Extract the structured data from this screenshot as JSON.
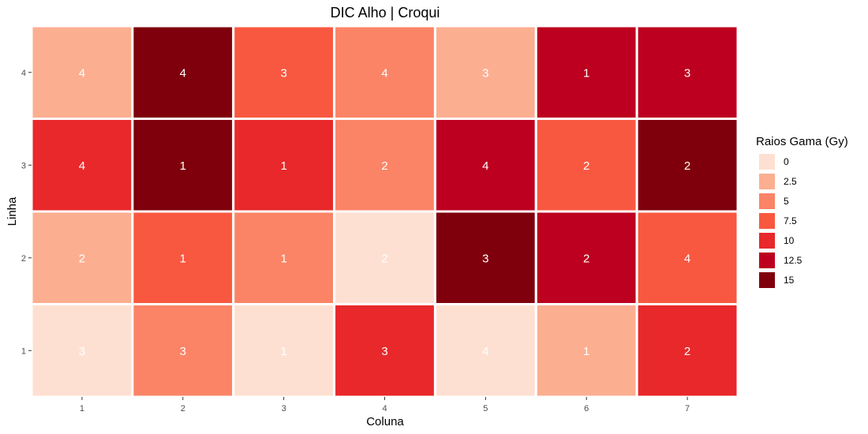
{
  "chart_data": {
    "type": "heatmap",
    "title": "DIC Alho | Croqui",
    "xlabel": "Coluna",
    "ylabel": "Linha",
    "x_categories": [
      "1",
      "2",
      "3",
      "4",
      "5",
      "6",
      "7"
    ],
    "y_categories": [
      "1",
      "2",
      "3",
      "4"
    ],
    "legend": {
      "title": "Raios Gama (Gy)",
      "placement": "right",
      "levels": [
        "0",
        "2.5",
        "5",
        "7.5",
        "10",
        "12.5",
        "15"
      ],
      "colors": [
        "#fee0d2",
        "#fcae91",
        "#fb8466",
        "#f95840",
        "#e8282a",
        "#bd001f",
        "#7f000c"
      ]
    },
    "grid": false,
    "cells": [
      {
        "x": "1",
        "y": "4",
        "fill": "2.5",
        "label": "4"
      },
      {
        "x": "2",
        "y": "4",
        "fill": "15",
        "label": "4"
      },
      {
        "x": "3",
        "y": "4",
        "fill": "7.5",
        "label": "3"
      },
      {
        "x": "4",
        "y": "4",
        "fill": "5",
        "label": "4"
      },
      {
        "x": "5",
        "y": "4",
        "fill": "2.5",
        "label": "3"
      },
      {
        "x": "6",
        "y": "4",
        "fill": "12.5",
        "label": "1"
      },
      {
        "x": "7",
        "y": "4",
        "fill": "12.5",
        "label": "3"
      },
      {
        "x": "1",
        "y": "3",
        "fill": "10",
        "label": "4"
      },
      {
        "x": "2",
        "y": "3",
        "fill": "15",
        "label": "1"
      },
      {
        "x": "3",
        "y": "3",
        "fill": "10",
        "label": "1"
      },
      {
        "x": "4",
        "y": "3",
        "fill": "5",
        "label": "2"
      },
      {
        "x": "5",
        "y": "3",
        "fill": "12.5",
        "label": "4"
      },
      {
        "x": "6",
        "y": "3",
        "fill": "7.5",
        "label": "2"
      },
      {
        "x": "7",
        "y": "3",
        "fill": "15",
        "label": "2"
      },
      {
        "x": "1",
        "y": "2",
        "fill": "2.5",
        "label": "2"
      },
      {
        "x": "2",
        "y": "2",
        "fill": "7.5",
        "label": "1"
      },
      {
        "x": "3",
        "y": "2",
        "fill": "5",
        "label": "1"
      },
      {
        "x": "4",
        "y": "2",
        "fill": "0",
        "label": "2"
      },
      {
        "x": "5",
        "y": "2",
        "fill": "15",
        "label": "3"
      },
      {
        "x": "6",
        "y": "2",
        "fill": "12.5",
        "label": "2"
      },
      {
        "x": "7",
        "y": "2",
        "fill": "7.5",
        "label": "4"
      },
      {
        "x": "1",
        "y": "1",
        "fill": "0",
        "label": "3"
      },
      {
        "x": "2",
        "y": "1",
        "fill": "5",
        "label": "3"
      },
      {
        "x": "3",
        "y": "1",
        "fill": "0",
        "label": "1"
      },
      {
        "x": "4",
        "y": "1",
        "fill": "10",
        "label": "3"
      },
      {
        "x": "5",
        "y": "1",
        "fill": "0",
        "label": "4"
      },
      {
        "x": "6",
        "y": "1",
        "fill": "2.5",
        "label": "1"
      },
      {
        "x": "7",
        "y": "1",
        "fill": "10",
        "label": "2"
      }
    ]
  }
}
